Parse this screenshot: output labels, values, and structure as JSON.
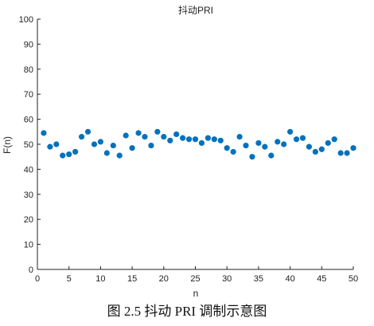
{
  "caption": "图 2.5  抖动 PRI 调制示意图",
  "chart_data": {
    "type": "scatter",
    "title": "抖动PRI",
    "xlabel": "n",
    "ylabel": "F(n)",
    "xlim": [
      0,
      50
    ],
    "ylim": [
      0,
      100
    ],
    "xticks": [
      0,
      5,
      10,
      15,
      20,
      25,
      30,
      35,
      40,
      45,
      50
    ],
    "yticks": [
      0,
      10,
      20,
      30,
      40,
      50,
      60,
      70,
      80,
      90,
      100
    ],
    "grid": false,
    "marker_color": "#0072BD",
    "x": [
      1,
      2,
      3,
      4,
      5,
      6,
      7,
      8,
      9,
      10,
      11,
      12,
      13,
      14,
      15,
      16,
      17,
      18,
      19,
      20,
      21,
      22,
      23,
      24,
      25,
      26,
      27,
      28,
      29,
      30,
      31,
      32,
      33,
      34,
      35,
      36,
      37,
      38,
      39,
      40,
      41,
      42,
      43,
      44,
      45,
      46,
      47,
      48,
      49,
      50
    ],
    "y": [
      54.5,
      49,
      50,
      45.5,
      46,
      47,
      53,
      55,
      50,
      51,
      46.5,
      49.5,
      45.5,
      53.5,
      48.5,
      54.5,
      53,
      49.5,
      55,
      53,
      51.5,
      54,
      52.5,
      52,
      52,
      50.5,
      52.5,
      52,
      51.5,
      48.5,
      47,
      53,
      49.5,
      45,
      50.5,
      49,
      45.5,
      51,
      50,
      55,
      52,
      52.5,
      49,
      47,
      48,
      50.5,
      52,
      46.5,
      46.5,
      48.5
    ]
  }
}
